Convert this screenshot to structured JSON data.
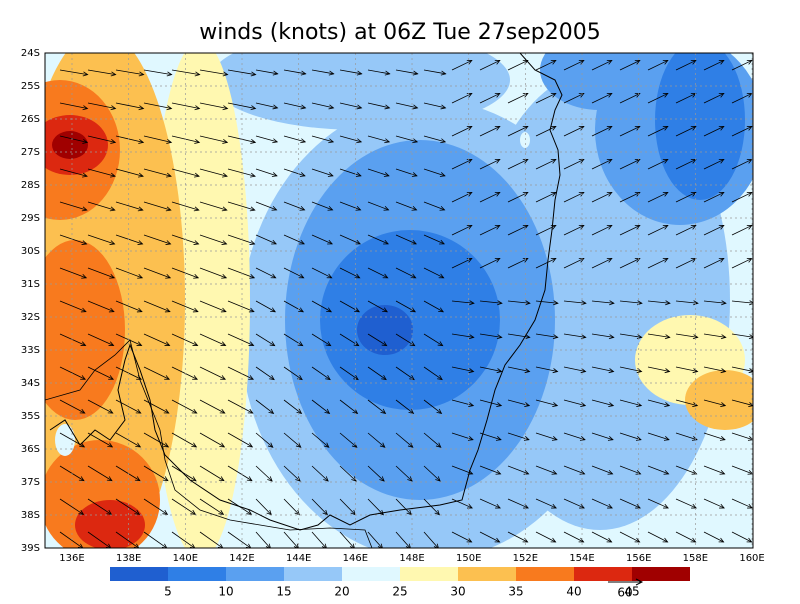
{
  "title": "winds (knots) at 06Z Tue 27sep2005",
  "lat_labels": [
    "24S",
    "25S",
    "26S",
    "27S",
    "28S",
    "29S",
    "30S",
    "31S",
    "32S",
    "33S",
    "34S",
    "35S",
    "36S",
    "37S",
    "38S",
    "39S"
  ],
  "lon_labels": [
    "136E",
    "138E",
    "140E",
    "142E",
    "144E",
    "146E",
    "148E",
    "150E",
    "152E",
    "154E",
    "156E",
    "158E",
    "160E"
  ],
  "colorbar": {
    "levels": [
      5,
      10,
      15,
      20,
      25,
      30,
      35,
      40,
      45
    ],
    "colors": [
      "#1f5fd0",
      "#2f7fe6",
      "#5aa0f0",
      "#96c8f8",
      "#e0f8ff",
      "#fff8b0",
      "#fcc050",
      "#f87a1e",
      "#dc2810",
      "#a00000"
    ]
  },
  "reference_vector": "60"
}
